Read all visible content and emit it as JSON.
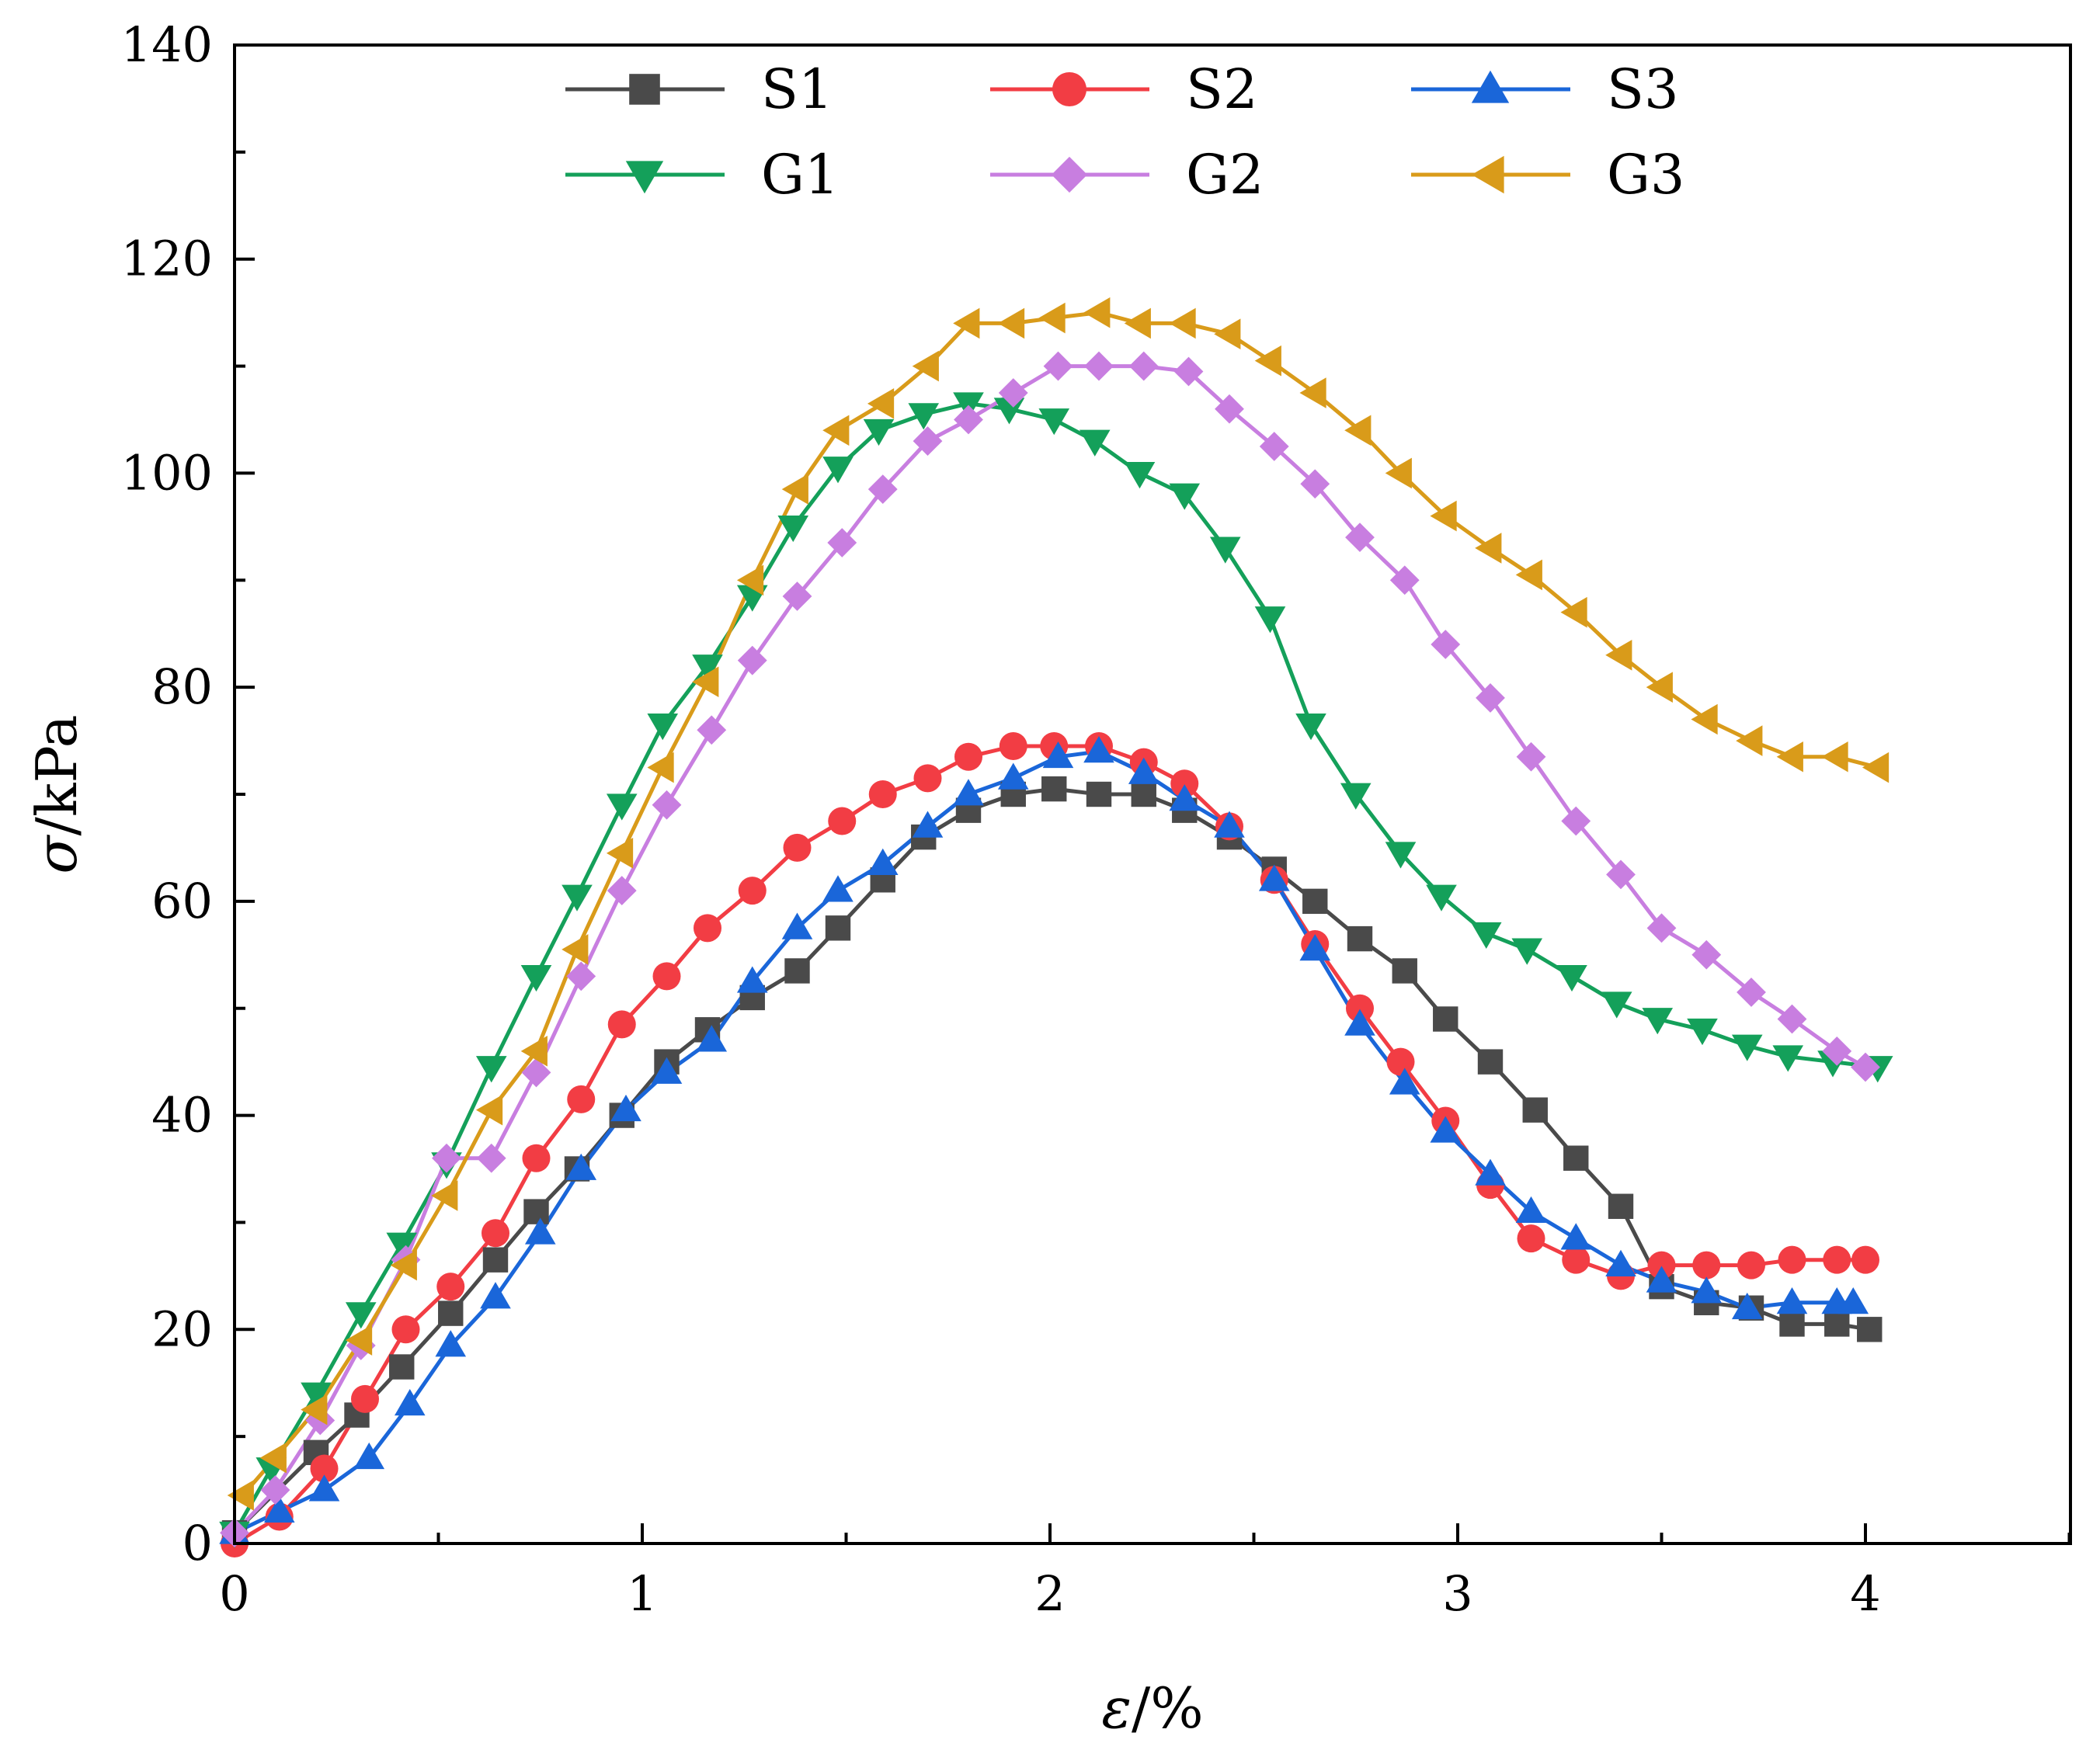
{
  "chart_data": {
    "type": "line",
    "title": "",
    "xlabel": "ε/%",
    "ylabel": "σ/kPa",
    "xlabel_symbol": "ε",
    "xlabel_unit": "/%",
    "ylabel_symbol": "σ",
    "ylabel_unit": "/kPa",
    "xlim": [
      0,
      4.5
    ],
    "ylim": [
      0,
      140
    ],
    "xticks": [
      "0",
      "1",
      "2",
      "3",
      "4"
    ],
    "yticks": [
      "0",
      "20",
      "40",
      "60",
      "80",
      "100",
      "120",
      "140"
    ],
    "grid": false,
    "legend_position": "top-center",
    "series": [
      {
        "name": "S1",
        "color": "#4a4a4a",
        "marker": "square",
        "x": [
          0,
          0.2,
          0.3,
          0.41,
          0.53,
          0.64,
          0.74,
          0.84,
          0.95,
          1.06,
          1.16,
          1.27,
          1.38,
          1.48,
          1.59,
          1.69,
          1.8,
          1.91,
          2.01,
          2.12,
          2.23,
          2.33,
          2.44,
          2.55,
          2.65,
          2.76,
          2.87,
          2.97,
          3.08,
          3.19,
          3.29,
          3.4,
          3.5,
          3.61,
          3.72,
          3.82,
          3.93,
          4.01
        ],
        "y": [
          1,
          8.5,
          12,
          16.5,
          21.5,
          26.5,
          31,
          35,
          40,
          45,
          48,
          51,
          53.5,
          57.5,
          62,
          66,
          68.5,
          70,
          70.5,
          70,
          70,
          68.5,
          66,
          63,
          60,
          56.5,
          53.5,
          49,
          45,
          40.5,
          36,
          31.5,
          24,
          22.5,
          22,
          20.5,
          20.5,
          20
        ]
      },
      {
        "name": "S2",
        "color": "#f23d44",
        "marker": "circle",
        "x": [
          0,
          0.11,
          0.22,
          0.32,
          0.42,
          0.53,
          0.64,
          0.74,
          0.85,
          0.95,
          1.06,
          1.16,
          1.27,
          1.38,
          1.49,
          1.59,
          1.7,
          1.8,
          1.91,
          2.01,
          2.12,
          2.23,
          2.33,
          2.44,
          2.55,
          2.65,
          2.76,
          2.86,
          2.97,
          3.08,
          3.18,
          3.29,
          3.4,
          3.5,
          3.61,
          3.72,
          3.82,
          3.93,
          4.0
        ],
        "y": [
          0,
          2.5,
          7,
          13.5,
          20,
          24,
          29,
          36,
          41.5,
          48.5,
          53,
          57.5,
          61,
          65,
          67.5,
          70,
          71.5,
          73.5,
          74.5,
          74.5,
          74.5,
          73,
          71,
          67,
          62,
          56,
          50,
          45,
          39.5,
          33.5,
          28.5,
          26.5,
          25,
          26,
          26,
          26,
          26.5,
          26.5,
          26.5
        ]
      },
      {
        "name": "S3",
        "color": "#1a66d9",
        "marker": "triangle-up",
        "x": [
          0,
          0.11,
          0.22,
          0.33,
          0.43,
          0.53,
          0.64,
          0.75,
          0.85,
          0.96,
          1.06,
          1.17,
          1.27,
          1.38,
          1.48,
          1.59,
          1.7,
          1.8,
          1.91,
          2.02,
          2.12,
          2.23,
          2.33,
          2.44,
          2.55,
          2.65,
          2.76,
          2.87,
          2.97,
          3.08,
          3.18,
          3.29,
          3.4,
          3.5,
          3.61,
          3.71,
          3.82,
          3.93,
          3.97
        ],
        "y": [
          1,
          3,
          5,
          8,
          13,
          18.5,
          23,
          29,
          35,
          40.5,
          44,
          47,
          52.5,
          57.5,
          61,
          63.5,
          67,
          70,
          71.5,
          73.5,
          74,
          72,
          69.5,
          67,
          62,
          55.5,
          48.5,
          43,
          38.5,
          34.5,
          31,
          28.5,
          26,
          24.5,
          23.5,
          22,
          22.5,
          22.5,
          22.5
        ]
      },
      {
        "name": "G1",
        "color": "#14a05a",
        "marker": "triangle-down",
        "x": [
          0,
          0.09,
          0.2,
          0.31,
          0.41,
          0.52,
          0.63,
          0.74,
          0.84,
          0.95,
          1.05,
          1.16,
          1.27,
          1.37,
          1.48,
          1.58,
          1.69,
          1.8,
          1.9,
          2.01,
          2.11,
          2.22,
          2.33,
          2.43,
          2.54,
          2.64,
          2.75,
          2.86,
          2.96,
          3.07,
          3.17,
          3.28,
          3.39,
          3.49,
          3.6,
          3.71,
          3.81,
          3.92,
          4.03
        ],
        "y": [
          1,
          7,
          14,
          21.5,
          28,
          35.5,
          44.5,
          53,
          60.5,
          69,
          76.5,
          82,
          88.5,
          95,
          100.5,
          104,
          105.5,
          106.5,
          106,
          105,
          103,
          100,
          98,
          93,
          86.5,
          76.5,
          70,
          64.5,
          60.5,
          57,
          55.5,
          53,
          50.5,
          49,
          48,
          46.5,
          45.5,
          45,
          44.5
        ]
      },
      {
        "name": "G2",
        "color": "#c87ee0",
        "marker": "diamond",
        "x": [
          0,
          0.1,
          0.21,
          0.31,
          0.42,
          0.52,
          0.63,
          0.74,
          0.85,
          0.95,
          1.06,
          1.17,
          1.27,
          1.38,
          1.49,
          1.59,
          1.7,
          1.8,
          1.91,
          2.02,
          2.12,
          2.23,
          2.34,
          2.44,
          2.55,
          2.65,
          2.76,
          2.87,
          2.97,
          3.08,
          3.18,
          3.29,
          3.4,
          3.5,
          3.61,
          3.72,
          3.82,
          3.93,
          4.0
        ],
        "y": [
          1,
          5,
          11.5,
          18.5,
          26.5,
          36,
          36,
          44,
          53,
          61,
          69,
          76,
          82.5,
          88.5,
          93.5,
          98.5,
          103,
          105,
          107.5,
          110,
          110,
          110,
          109.5,
          106,
          102.5,
          99,
          94,
          90,
          84,
          79,
          73.5,
          67.5,
          62.5,
          57.5,
          55,
          51.5,
          49,
          46,
          44.5
        ]
      },
      {
        "name": "G3",
        "color": "#d99b1a",
        "marker": "triangle-left",
        "x": [
          0.02,
          0.1,
          0.2,
          0.31,
          0.42,
          0.52,
          0.63,
          0.74,
          0.84,
          0.95,
          1.05,
          1.16,
          1.27,
          1.38,
          1.48,
          1.59,
          1.7,
          1.8,
          1.91,
          2.01,
          2.12,
          2.22,
          2.33,
          2.44,
          2.54,
          2.65,
          2.76,
          2.86,
          2.97,
          3.08,
          3.18,
          3.29,
          3.4,
          3.5,
          3.61,
          3.72,
          3.82,
          3.93,
          4.03
        ],
        "y": [
          4.5,
          8,
          12.5,
          19,
          26,
          32.5,
          40.5,
          46,
          55.5,
          64.5,
          72.5,
          80.5,
          90,
          98.5,
          104,
          106.5,
          110,
          114,
          114,
          114.5,
          115,
          114,
          114,
          113,
          110.5,
          107.5,
          104,
          100,
          96,
          93,
          90.5,
          87,
          83,
          80,
          77,
          75,
          73.5,
          73.5,
          72.5
        ]
      }
    ]
  }
}
